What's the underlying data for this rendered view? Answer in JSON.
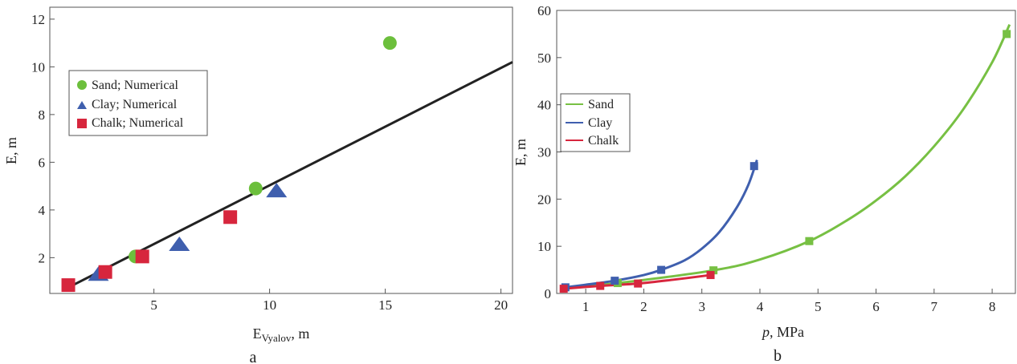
{
  "chart_data": [
    {
      "panel": "a",
      "type": "scatter",
      "xlabel": "E",
      "xlabel_sub": "Vyalov",
      "xlabel_unit": ", m",
      "ylabel": "E, m",
      "xlim": [
        0.5,
        20.5
      ],
      "ylim": [
        0.5,
        12.5
      ],
      "xticks": [
        5,
        10,
        15,
        20
      ],
      "yticks": [
        2,
        4,
        6,
        8,
        10,
        12
      ],
      "legend": "upper-left",
      "grid": false,
      "series": [
        {
          "name": "Sand; Numerical",
          "marker": "circle",
          "color": "#6cbf3c",
          "points": [
            [
              4.2,
              2.05
            ],
            [
              9.4,
              4.9
            ],
            [
              15.2,
              11.0
            ]
          ]
        },
        {
          "name": "Clay; Numerical",
          "marker": "triangle",
          "color": "#3f5fae",
          "points": [
            [
              2.6,
              1.3
            ],
            [
              6.1,
              2.55
            ],
            [
              10.3,
              4.8
            ]
          ]
        },
        {
          "name": "Chalk; Numerical",
          "marker": "square",
          "color": "#d7263d",
          "points": [
            [
              1.3,
              0.85
            ],
            [
              2.9,
              1.4
            ],
            [
              4.5,
              2.05
            ],
            [
              8.3,
              3.7
            ]
          ]
        }
      ],
      "fit_line": {
        "color": "#222222",
        "points": [
          [
            1.3,
            0.75
          ],
          [
            20.5,
            10.2
          ]
        ]
      }
    },
    {
      "panel": "b",
      "type": "line",
      "xlabel": "p",
      "xlabel_unit": ", MPa",
      "ylabel": "E, m",
      "xlim": [
        0.5,
        8.4
      ],
      "ylim": [
        0,
        60
      ],
      "xticks": [
        1,
        2,
        3,
        4,
        5,
        6,
        7,
        8
      ],
      "yticks": [
        0,
        10,
        20,
        30,
        40,
        50,
        60
      ],
      "legend": "center-left",
      "grid": false,
      "series": [
        {
          "name": "Sand",
          "color": "#77c043",
          "points": [
            [
              1.55,
              2.2
            ],
            [
              3.2,
              4.9
            ],
            [
              4.85,
              11.1
            ],
            [
              8.25,
              55.0
            ]
          ],
          "curve": [
            [
              0.65,
              1.2
            ],
            [
              1.55,
              2.2
            ],
            [
              3.2,
              4.9
            ],
            [
              4.0,
              7.2
            ],
            [
              4.85,
              11.1
            ],
            [
              5.5,
              15.5
            ],
            [
              6.0,
              19.7
            ],
            [
              6.5,
              24.8
            ],
            [
              7.0,
              31.2
            ],
            [
              7.5,
              39.0
            ],
            [
              8.0,
              49.0
            ],
            [
              8.3,
              57.0
            ]
          ]
        },
        {
          "name": "Clay",
          "color": "#3f5fae",
          "points": [
            [
              0.65,
              1.3
            ],
            [
              1.5,
              2.7
            ],
            [
              2.3,
              5.0
            ],
            [
              3.9,
              27.0
            ]
          ],
          "curve": [
            [
              0.65,
              1.3
            ],
            [
              1.0,
              1.85
            ],
            [
              1.5,
              2.7
            ],
            [
              2.0,
              3.9
            ],
            [
              2.3,
              5.0
            ],
            [
              2.7,
              7.0
            ],
            [
              3.0,
              9.5
            ],
            [
              3.3,
              13.0
            ],
            [
              3.6,
              18.2
            ],
            [
              3.8,
              23.0
            ],
            [
              3.95,
              28.3
            ]
          ]
        },
        {
          "name": "Chalk",
          "color": "#d7263d",
          "points": [
            [
              0.62,
              1.0
            ],
            [
              1.25,
              1.6
            ],
            [
              1.9,
              2.1
            ],
            [
              3.15,
              3.9
            ]
          ],
          "curve": [
            [
              0.62,
              1.0
            ],
            [
              1.25,
              1.6
            ],
            [
              1.9,
              2.1
            ],
            [
              2.5,
              2.9
            ],
            [
              3.15,
              3.9
            ]
          ]
        }
      ]
    }
  ],
  "panel_labels": {
    "a": "a",
    "b": "b"
  }
}
